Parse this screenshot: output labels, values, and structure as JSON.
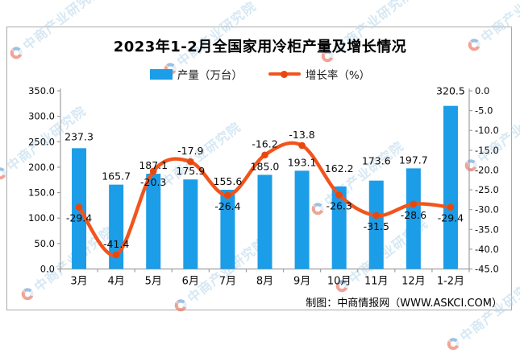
{
  "page": {
    "title": "2023年1-2月全国家用冷柜产量及增长情况",
    "source": "制图：中商情报网（WWW.ASKCI.COM）",
    "watermark_text": "中商产业研究院"
  },
  "legend": {
    "bar_label": "产量（万台）",
    "line_label": "增长率（%）"
  },
  "colors": {
    "bar": "#1b9de8",
    "line": "#f2541b",
    "marker": "#e8470e",
    "axis": "#9f9f9f",
    "label": "#0a0a0a",
    "watermark": "#b5d6ec"
  },
  "chart_data": {
    "type": "combo",
    "title": "2023年1-2月全国家用冷柜产量及增长情况",
    "categories": [
      "3月",
      "4月",
      "5月",
      "6月",
      "7月",
      "8月",
      "9月",
      "10月",
      "11月",
      "12月",
      "1-2月"
    ],
    "series": [
      {
        "name": "产量（万台）",
        "type": "bar",
        "axis": "left",
        "color": "#1b9de8",
        "values": [
          237.3,
          165.7,
          187.1,
          175.9,
          155.6,
          185.0,
          193.1,
          162.2,
          173.6,
          197.7,
          320.5
        ]
      },
      {
        "name": "增长率（%）",
        "type": "line",
        "axis": "right",
        "color": "#f2541b",
        "marker_color": "#e8470e",
        "values": [
          -29.4,
          -41.4,
          -20.3,
          -17.9,
          -26.4,
          -16.2,
          -13.8,
          -26.3,
          -31.5,
          -28.6,
          -29.4
        ],
        "label_side": [
          "below",
          "above",
          "below",
          "above",
          "below",
          "above",
          "above",
          "below",
          "below",
          "below",
          "below"
        ]
      }
    ],
    "left_axis": {
      "min": 0,
      "max": 350,
      "tick_step": 50,
      "ticks": [
        "350.0",
        "300.0",
        "250.0",
        "200.0",
        "150.0",
        "100.0",
        "50.0",
        "0.0"
      ]
    },
    "right_axis": {
      "min": -45,
      "max": 0,
      "tick_step": 5,
      "ticks": [
        "0.0",
        "-5.0",
        "-10.0",
        "-15.0",
        "-20.0",
        "-25.0",
        "-30.0",
        "-35.0",
        "-40.0",
        "-45.0"
      ]
    },
    "grid": false,
    "legend_position": "top",
    "source": "制图：中商情报网（WWW.ASKCI.COM）"
  }
}
